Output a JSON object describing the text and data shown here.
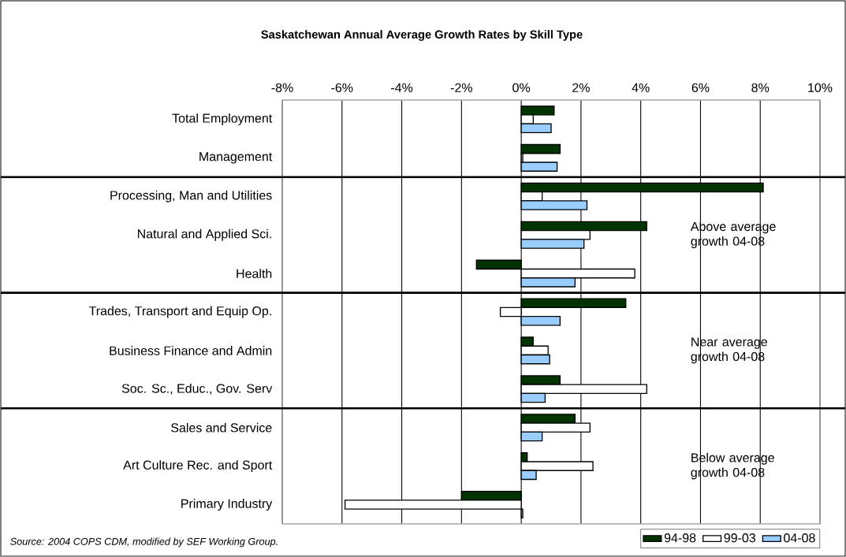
{
  "chart_data": {
    "type": "bar",
    "orientation": "horizontal",
    "title": "Saskatchewan Annual Average Growth Rates by Skill Type",
    "categories": [
      "Total Employment",
      "Management",
      "Processing, Man and Utilities",
      "Natural and Applied Sci.",
      "Health",
      "Trades, Transport and Equip Op.",
      "Business Finance and Admin",
      "Soc. Sc., Educ., Gov. Serv",
      "Sales and Service",
      "Art Culture Rec. and Sport",
      "Primary Industry"
    ],
    "series": [
      {
        "name": "94-98",
        "color": "#003300",
        "values": [
          1.1,
          1.3,
          8.1,
          4.2,
          -1.5,
          3.5,
          0.4,
          1.3,
          1.8,
          0.2,
          -2.0
        ]
      },
      {
        "name": "99-03",
        "color": "#ffffff",
        "values": [
          0.4,
          0.05,
          0.7,
          2.3,
          3.8,
          -0.7,
          0.9,
          4.2,
          2.3,
          2.4,
          -5.9
        ]
      },
      {
        "name": "04-08",
        "color": "#99ccff",
        "values": [
          1.0,
          1.2,
          2.2,
          2.1,
          1.8,
          1.3,
          0.95,
          0.8,
          0.7,
          0.5,
          0.05
        ]
      }
    ],
    "xlim": [
      -8,
      10
    ],
    "xticks": [
      {
        "value": -8,
        "label": "-8%"
      },
      {
        "value": -6,
        "label": "-6%"
      },
      {
        "value": -4,
        "label": "-4%"
      },
      {
        "value": -2,
        "label": "-2%"
      },
      {
        "value": 0,
        "label": "0%"
      },
      {
        "value": 2,
        "label": "2%"
      },
      {
        "value": 4,
        "label": "4%"
      },
      {
        "value": 6,
        "label": "6%"
      },
      {
        "value": 8,
        "label": "8%"
      },
      {
        "value": 10,
        "label": "10%"
      }
    ],
    "grid": "x",
    "legend": "bottom right",
    "annotations": [
      "Source: 2004 COPS CDM, modified by SEF Working Group.",
      "Above average growth 04-08",
      "Near average growth 04-08",
      "Below average growth 04-08"
    ]
  }
}
